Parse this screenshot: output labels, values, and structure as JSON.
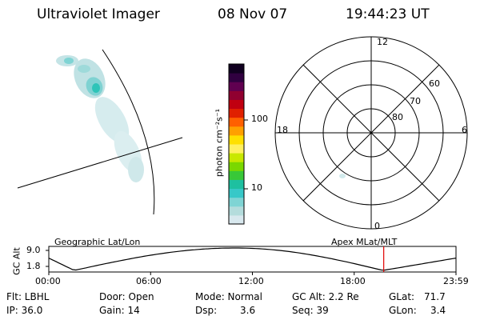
{
  "header": {
    "instrument": "Ultraviolet Imager",
    "date": "08 Nov 07",
    "time": "19:44:23 UT"
  },
  "colorbar": {
    "unit_label": "photon cm⁻²s⁻¹",
    "ticks": [
      "100",
      "10"
    ],
    "colors": [
      "#d8e8ee",
      "#b4dcdc",
      "#7fd4d4",
      "#37c8c8",
      "#1ec0a0",
      "#38c838",
      "#7ad800",
      "#c8e800",
      "#fff060",
      "#ffe000",
      "#ffa000",
      "#ff6000",
      "#e02000",
      "#c00010",
      "#900030",
      "#600050",
      "#300040",
      "#100020"
    ]
  },
  "polar": {
    "labels": {
      "top": "12",
      "bottom": "0",
      "left": "18",
      "right": "6"
    },
    "lat_labels": [
      "60",
      "70",
      "80"
    ]
  },
  "timeline": {
    "left_label": "Geographic Lat/Lon",
    "right_label": "Apex MLat/MLT",
    "y_title": "GC Alt",
    "y_max": "9.0",
    "y_min": "1.8",
    "ticks": [
      "00:00",
      "06:00",
      "12:00",
      "18:00",
      "23:59"
    ],
    "marker_time_hours": 19.74,
    "marker_color": "#e00000"
  },
  "info": {
    "flt": "Flt: LBHL",
    "ip": "IP: 36.0",
    "door": "Door: Open",
    "gain": "Gain: 14",
    "mode": "Mode: Normal",
    "dsp_label": "Dsp:",
    "dsp_value": "3.6",
    "gcalt": "GC Alt: 2.2 Re",
    "seq": "Seq: 39",
    "glat_label": "GLat:",
    "glat_value": "71.7",
    "glon_label": "GLon:",
    "glon_value": "3.4"
  }
}
